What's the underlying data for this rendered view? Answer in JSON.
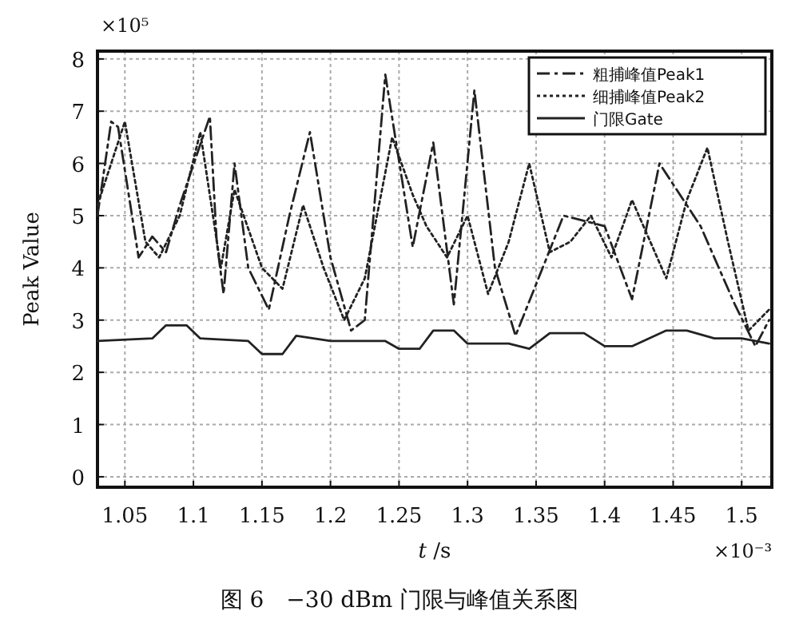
{
  "chart_data": {
    "type": "line",
    "title": "图 6　−30 dBm 门限与峰值关系图",
    "xlabel": "*t* /s",
    "ylabel": "Peak Value",
    "annotations": [
      "×10⁵",
      "×10⁻³"
    ],
    "xlim": [
      1.03,
      1.522
    ],
    "ylim": [
      -0.2,
      8.15
    ],
    "xticks": [
      1.05,
      1.1,
      1.15,
      1.2,
      1.25,
      1.3,
      1.35,
      1.4,
      1.45,
      1.5
    ],
    "yticks": [
      0,
      1,
      2,
      3,
      4,
      5,
      6,
      7,
      8
    ],
    "grid": true,
    "legend": "top right",
    "series": [
      {
        "name": "粗捕峰值Peak1",
        "color": "#222222",
        "line_style": "dashed",
        "x": [
          1.03,
          1.04,
          1.045,
          1.06,
          1.07,
          1.08,
          1.09,
          1.112,
          1.117,
          1.122,
          1.13,
          1.14,
          1.155,
          1.17,
          1.185,
          1.2,
          1.215,
          1.225,
          1.24,
          1.26,
          1.275,
          1.29,
          1.305,
          1.32,
          1.335,
          1.37,
          1.4,
          1.42,
          1.44,
          1.47,
          1.495,
          1.51,
          1.52
        ],
        "values": [
          5.0,
          6.8,
          6.7,
          4.2,
          4.6,
          4.3,
          5.2,
          6.9,
          4.5,
          3.5,
          6.0,
          4.0,
          3.2,
          5.0,
          6.6,
          4.2,
          2.8,
          3.0,
          7.7,
          4.4,
          6.4,
          3.3,
          7.4,
          4.0,
          2.7,
          5.0,
          4.8,
          3.4,
          6.0,
          4.8,
          3.3,
          2.5,
          3.0
        ]
      },
      {
        "name": "细捕峰值Peak2",
        "color": "#222222",
        "line_style": "dotted",
        "x": [
          1.03,
          1.04,
          1.05,
          1.065,
          1.075,
          1.09,
          1.105,
          1.12,
          1.13,
          1.15,
          1.165,
          1.18,
          1.195,
          1.21,
          1.225,
          1.245,
          1.26,
          1.27,
          1.285,
          1.3,
          1.315,
          1.33,
          1.345,
          1.36,
          1.375,
          1.39,
          1.405,
          1.42,
          1.43,
          1.445,
          1.46,
          1.475,
          1.49,
          1.505,
          1.52
        ],
        "values": [
          5.2,
          6.0,
          6.8,
          4.5,
          4.2,
          5.0,
          6.6,
          4.0,
          5.5,
          4.0,
          3.6,
          5.2,
          4.0,
          3.0,
          3.8,
          6.5,
          5.4,
          4.8,
          4.2,
          5.0,
          3.5,
          4.5,
          6.0,
          4.3,
          4.5,
          5.0,
          4.2,
          5.3,
          4.7,
          3.8,
          5.3,
          6.3,
          4.5,
          2.8,
          3.2
        ]
      },
      {
        "name": "门限Gate",
        "color": "#222222",
        "line_style": "solid",
        "x": [
          1.03,
          1.07,
          1.08,
          1.095,
          1.105,
          1.14,
          1.15,
          1.165,
          1.175,
          1.2,
          1.24,
          1.25,
          1.265,
          1.275,
          1.29,
          1.3,
          1.33,
          1.345,
          1.36,
          1.385,
          1.4,
          1.42,
          1.445,
          1.46,
          1.48,
          1.5,
          1.52
        ],
        "values": [
          2.6,
          2.65,
          2.9,
          2.9,
          2.65,
          2.6,
          2.35,
          2.35,
          2.7,
          2.6,
          2.6,
          2.45,
          2.45,
          2.8,
          2.8,
          2.55,
          2.55,
          2.45,
          2.75,
          2.75,
          2.5,
          2.5,
          2.8,
          2.8,
          2.65,
          2.65,
          2.55
        ]
      }
    ]
  }
}
